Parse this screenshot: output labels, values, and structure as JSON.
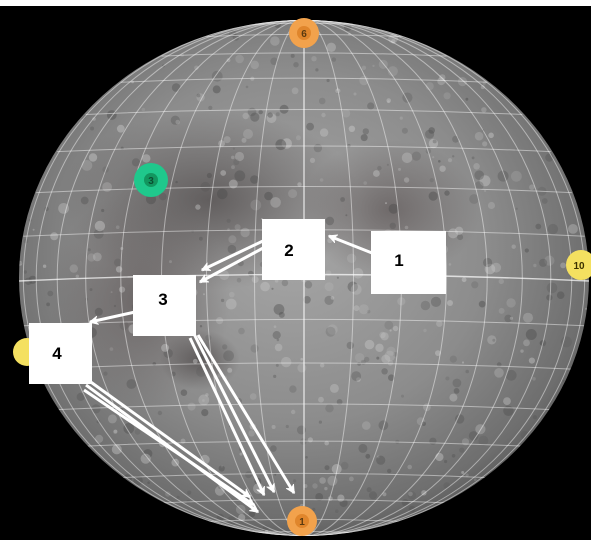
{
  "labels": {
    "one": "1",
    "two": "2",
    "three": "3",
    "four": "4"
  },
  "markers": {
    "top": "6",
    "bottom": "1",
    "right": "10",
    "left": "",
    "green": "3"
  },
  "colors": {
    "background": "#000000",
    "frame": "#ffffff",
    "moon": "#8f8f8f",
    "grid": "#ffffff",
    "marker_orange": "#f2a24c",
    "marker_yellow": "#f4e060",
    "marker_green": "#1fc88c",
    "label_box": "#ffffff"
  }
}
